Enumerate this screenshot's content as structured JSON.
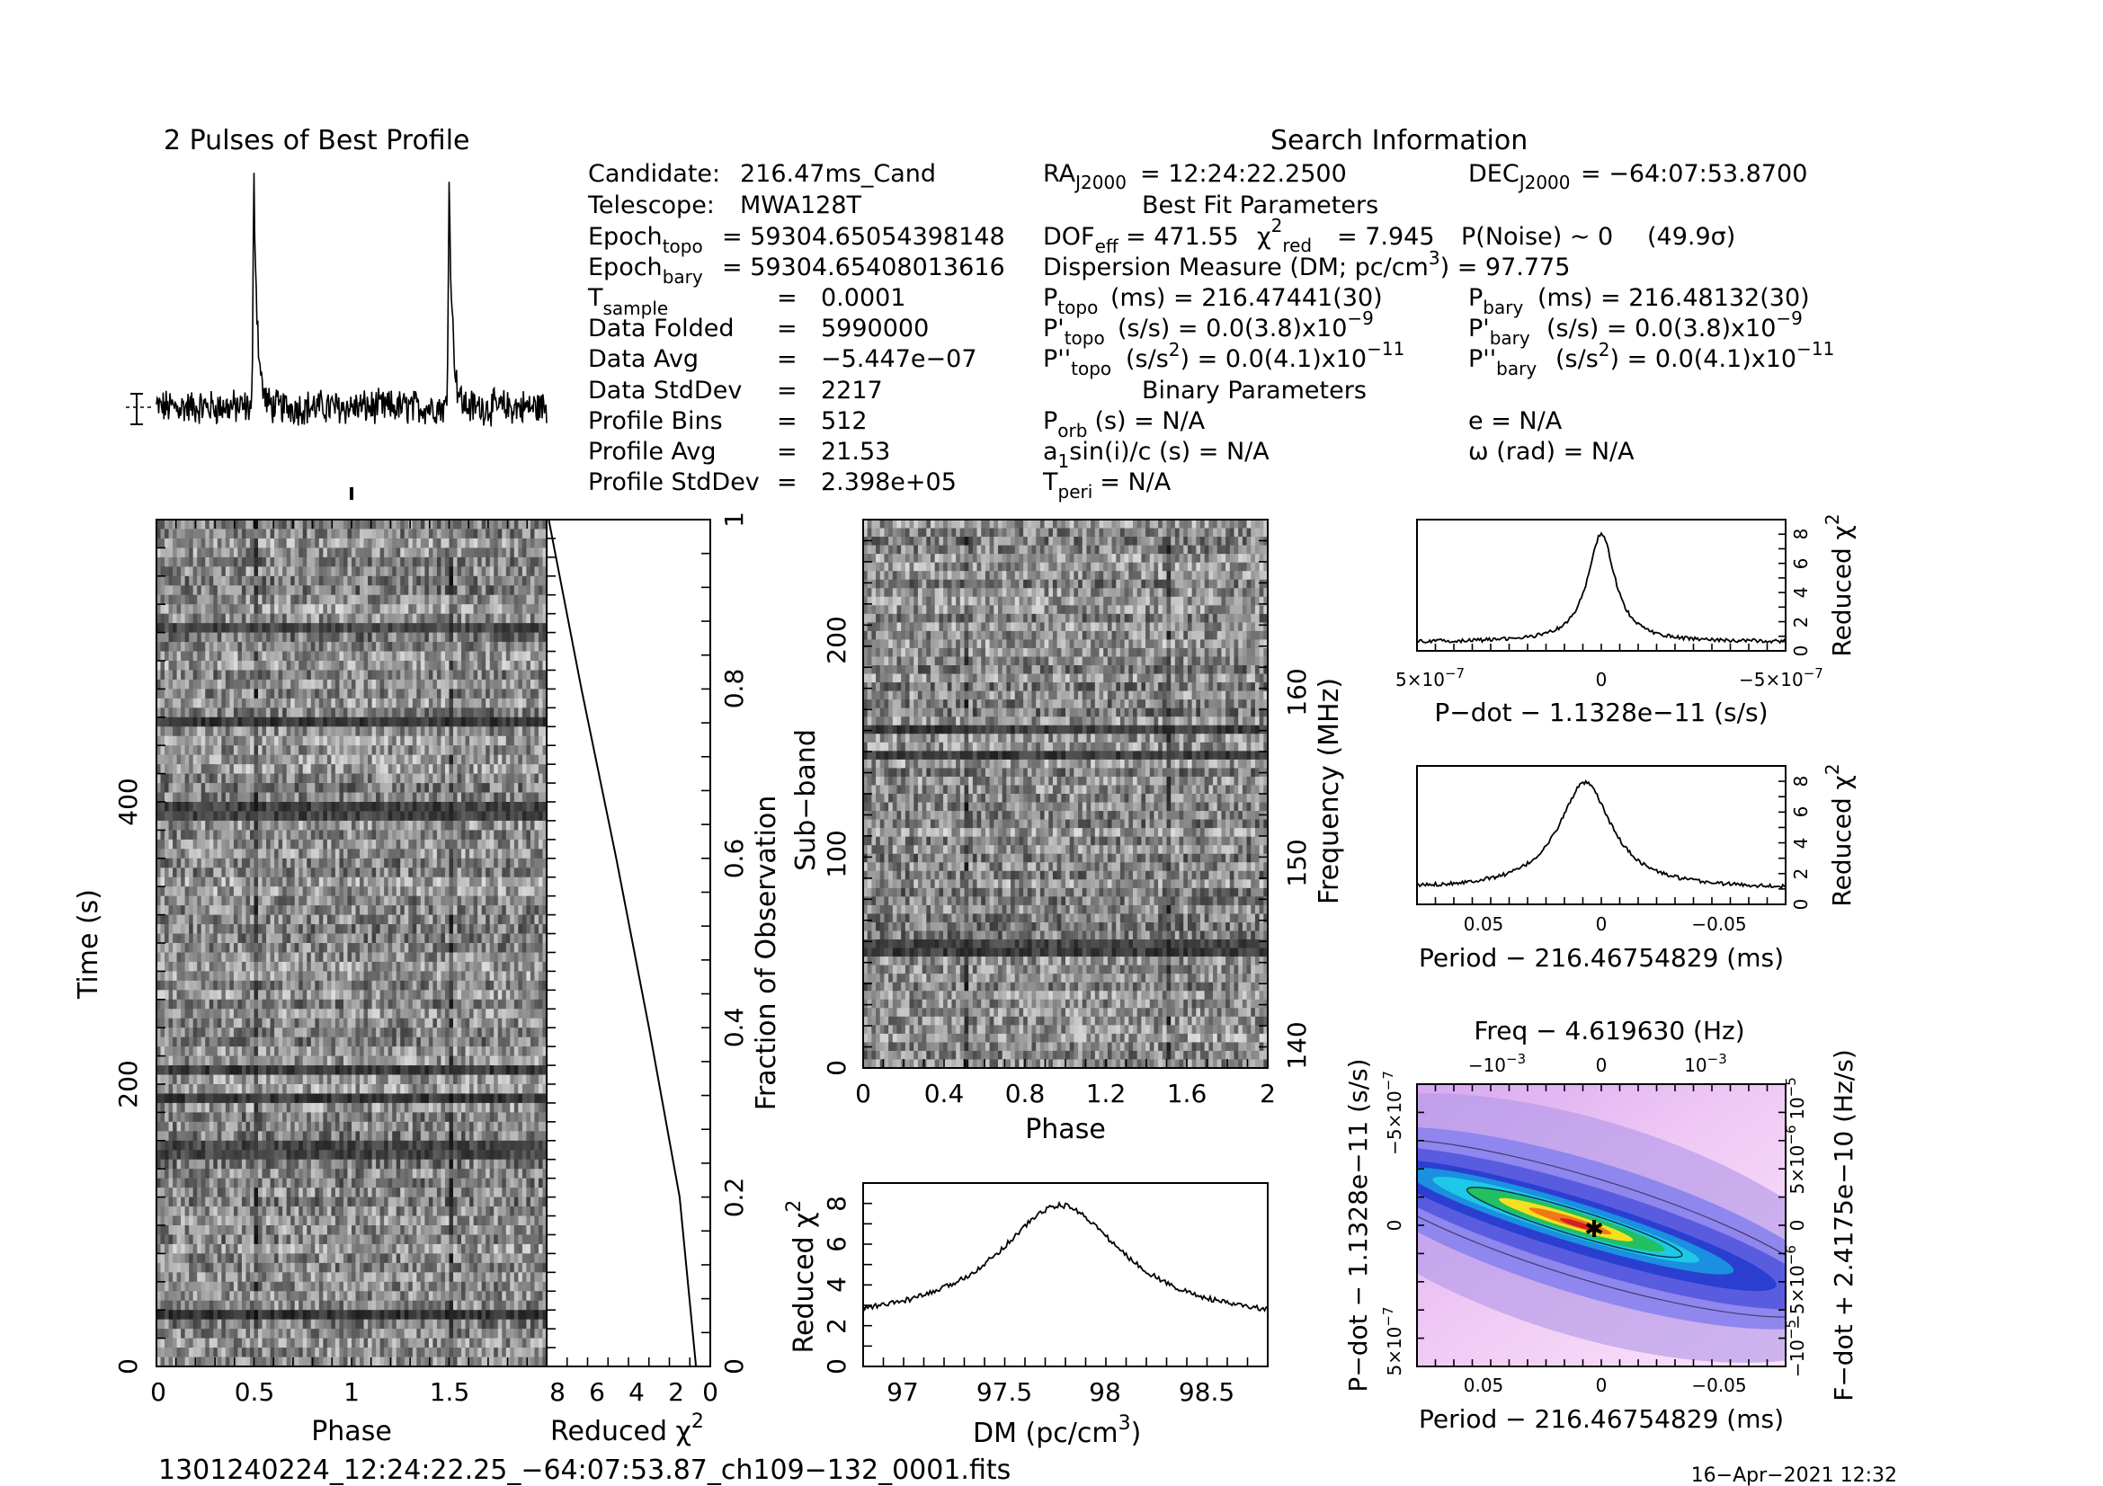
{
  "profile_panel": {
    "title": "2 Pulses of Best Profile"
  },
  "info": {
    "title": "Search Information",
    "candidate": {
      "label": "Candidate:",
      "value": "216.47ms_Cand"
    },
    "telescope": {
      "label": "Telescope:",
      "value": "MWA128T"
    },
    "epoch_topo": {
      "label_main": "Epoch",
      "label_sub": "topo",
      "value": "= 59304.65054398148"
    },
    "epoch_bary": {
      "label_main": "Epoch",
      "label_sub": "bary",
      "value": "= 59304.65408013616"
    },
    "tsample": {
      "label_main": "T",
      "label_sub": "sample",
      "eq": "=",
      "value": "0.0001"
    },
    "data_folded": {
      "label": "Data Folded",
      "eq": "=",
      "value": "5990000"
    },
    "data_avg": {
      "label": "Data Avg",
      "eq": "=",
      "value": "−5.447e−07"
    },
    "data_stddev": {
      "label": "Data StdDev",
      "eq": "=",
      "value": "2217"
    },
    "profile_bins": {
      "label": "Profile Bins",
      "eq": "=",
      "value": "512"
    },
    "profile_avg": {
      "label": "Profile Avg",
      "eq": "=",
      "value": "21.53"
    },
    "profile_stddev": {
      "label": "Profile StdDev",
      "eq": "=",
      "value": "2.398e+05"
    },
    "ra": {
      "main": "RA",
      "sub": "J2000",
      "value": "= 12:24:22.2500"
    },
    "dec": {
      "main": "DEC",
      "sub": "J2000",
      "value": "= −64:07:53.8700"
    },
    "best_fit_title": "Best Fit Parameters",
    "dof": {
      "main": "DOF",
      "sub": "eff",
      "value": "= 471.55"
    },
    "chi2": {
      "main": "χ",
      "sup": "2",
      "sub": "red",
      "value": "= 7.945"
    },
    "pnoise": {
      "label": "P(Noise) ~ 0",
      "sigma": "(49.9σ)"
    },
    "dm_line": {
      "text": "Dispersion Measure (DM; pc/cm",
      "sup": "3",
      "tail": ") = 97.775"
    },
    "ptopo": {
      "main": "P",
      "sub": "topo",
      "value": "(ms) =  216.47441(30)"
    },
    "pbary": {
      "main": "P",
      "sub": "bary",
      "value": "(ms) =  216.48132(30)"
    },
    "pdot_topo": {
      "main": "P'",
      "sub": "topo",
      "value": "(s/s) = 0.0(3.8)x10",
      "exp": "−9"
    },
    "pdot_bary": {
      "main": "P'",
      "sub": "bary",
      "value": "(s/s) = 0.0(3.8)x10",
      "exp": "−9"
    },
    "pddot_topo": {
      "main": "P''",
      "sub": "topo",
      "value": "(s/s",
      "vsup": "2",
      "tail": ") = 0.0(4.1)x10",
      "exp": "−11"
    },
    "pddot_bary": {
      "main": "P''",
      "sub": "bary",
      "value": "(s/s",
      "vsup": "2",
      "tail": ") = 0.0(4.1)x10",
      "exp": "−11"
    },
    "binary_title": "Binary Parameters",
    "porb": {
      "main": "P",
      "sub": "orb",
      "value": "(s) = N/A"
    },
    "e": "e = N/A",
    "a1sini": {
      "main": "a",
      "sub": "1",
      "value": "sin(i)/c (s) = N/A"
    },
    "omega": "ω (rad) = N/A",
    "tperi": {
      "main": "T",
      "sub": "peri",
      "value": "= N/A"
    }
  },
  "footer": {
    "filename": "1301240224_12:24:22.25_−64:07:53.87_ch109−132_0001.fits",
    "timestamp": "16−Apr−2021 12:32"
  },
  "chart_data": [
    {
      "id": "pulse-profile",
      "type": "line",
      "title": "2 Pulses of Best Profile",
      "x_range": [
        0,
        2
      ],
      "pulse_peak_phases": [
        0.5,
        1.5
      ],
      "grid": false
    },
    {
      "id": "time-vs-phase",
      "type": "heatmap",
      "xlabel": "Phase",
      "ylabel": "Time (s)",
      "xlim": [
        0,
        2
      ],
      "ylim": [
        0,
        600
      ],
      "x_ticks": [
        "0",
        "0.5",
        "1",
        "1.5"
      ],
      "y_ticks": [
        "0",
        "200",
        "400"
      ],
      "colormap": "grayscale"
    },
    {
      "id": "chi2-vs-fraction",
      "type": "line",
      "xlabel": "Reduced χ",
      "xlabel_sup": "2",
      "ylabel": "Fraction of Observation",
      "xlim": [
        8,
        0
      ],
      "ylim": [
        0,
        1
      ],
      "x_ticks": [
        "8",
        "6",
        "4",
        "2",
        "0"
      ],
      "y_ticks": [
        "0",
        "0.2",
        "0.4",
        "0.6",
        "0.8",
        "1"
      ],
      "points": [
        [
          0.7,
          0
        ],
        [
          1.5,
          0.2
        ],
        [
          3.0,
          0.4
        ],
        [
          4.6,
          0.6
        ],
        [
          6.3,
          0.8
        ],
        [
          7.5,
          0.95
        ],
        [
          7.9,
          1.0
        ]
      ]
    },
    {
      "id": "subband-vs-phase",
      "type": "heatmap",
      "xlabel": "Phase",
      "ylabel": "Sub−band",
      "y2label": "Frequency (MHz)",
      "xlim": [
        0,
        2
      ],
      "ylim": [
        0,
        256
      ],
      "x_ticks": [
        "0",
        "0.4",
        "0.8",
        "1.2",
        "1.6",
        "2"
      ],
      "y_ticks": [
        "0",
        "100",
        "200"
      ],
      "y2_ticks": [
        "140",
        "150",
        "160"
      ],
      "colormap": "grayscale"
    },
    {
      "id": "chi2-vs-dm",
      "type": "line",
      "xlabel": "DM (pc/cm",
      "xlabel_sup": "3",
      "xlabel_tail": ")",
      "ylabel": "Reduced χ",
      "ylabel_sup": "2",
      "xlim": [
        96.8,
        98.8
      ],
      "ylim": [
        0,
        9
      ],
      "x_ticks": [
        "97",
        "97.5",
        "98",
        "98.5"
      ],
      "y_ticks": [
        "0",
        "2",
        "4",
        "6",
        "8"
      ],
      "peak": {
        "x": 97.775,
        "y": 7.9
      },
      "baseline": 2.1
    },
    {
      "id": "chi2-vs-pdot",
      "type": "line",
      "xlabel": "P−dot − 1.1328e−11 (s/s)",
      "ylabel": "Reduced χ",
      "ylabel_sup": "2",
      "xlim": [
        5e-07,
        -5e-07
      ],
      "ylim": [
        0,
        9
      ],
      "x_tick_left": {
        "m": "5×10",
        "e": "−7"
      },
      "x_tick_mid": "0",
      "x_tick_right": {
        "m": "−5×10",
        "e": "−7"
      },
      "y_ticks": [
        "0",
        "2",
        "4",
        "6",
        "8"
      ],
      "peak": {
        "x": 0,
        "y": 8.0
      },
      "baseline": 0.6
    },
    {
      "id": "chi2-vs-period",
      "type": "line",
      "xlabel": "Period − 216.46754829 (ms)",
      "ylabel": "Reduced χ",
      "ylabel_sup": "2",
      "xlim": [
        0.08,
        -0.08
      ],
      "ylim": [
        0,
        9
      ],
      "x_ticks": [
        "0.05",
        "0",
        "−0.05"
      ],
      "y_ticks": [
        "0",
        "2",
        "4",
        "6",
        "8"
      ],
      "peak": {
        "x": 0.007,
        "y": 7.9
      },
      "baseline": 1.0
    },
    {
      "id": "period-pdot-plane",
      "type": "heatmap",
      "title": "Freq − 4.619630 (Hz)",
      "xlabel": "Period − 216.46754829 (ms)",
      "ylabel": "P−dot − 1.1328e−11 (s/s)",
      "y2label": "F−dot + 2.4175e−10 (Hz/s)",
      "xlim": [
        0.08,
        -0.08
      ],
      "x_ticks": [
        "0.05",
        "0",
        "−0.05"
      ],
      "top_ticks": [
        {
          "m": "−10",
          "e": "−3"
        },
        {
          "m": "0",
          "e": ""
        },
        {
          "m": "10",
          "e": "−3"
        }
      ],
      "left_ticks": [
        {
          "m": "−5×10",
          "e": "−7"
        },
        {
          "m": "0",
          "e": ""
        },
        {
          "m": "5×10",
          "e": "−7"
        }
      ],
      "right_ticks": [
        {
          "m": "10",
          "e": "−5"
        },
        {
          "m": "5×10",
          "e": "−6"
        },
        {
          "m": "0",
          "e": ""
        },
        {
          "m": "−5×10",
          "e": "−6"
        },
        {
          "m": "−10",
          "e": "−5"
        }
      ],
      "best_marker": {
        "period": 0.007,
        "pdot": 0
      },
      "colormap": "rainbow"
    }
  ]
}
